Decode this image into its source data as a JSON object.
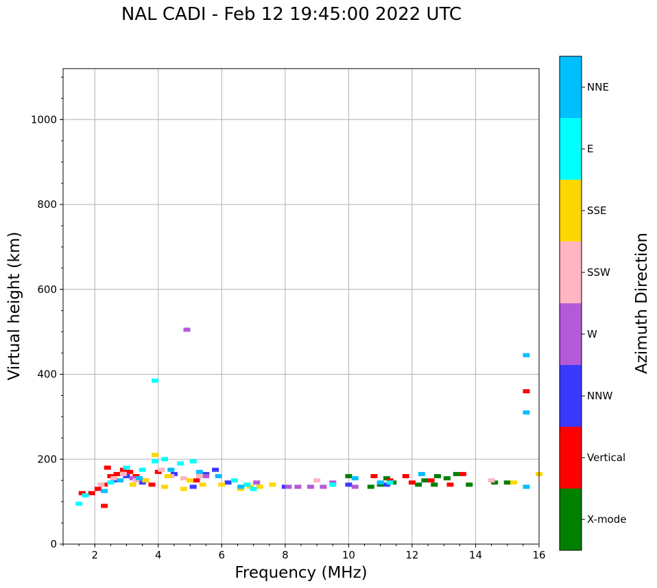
{
  "chart_data": {
    "type": "scatter",
    "title": "NAL CADI - Feb 12 19:45:00 2022 UTC",
    "xlabel": "Frequency (MHz)",
    "ylabel": "Virtual height (km)",
    "xlim": [
      1,
      16
    ],
    "ylim": [
      0,
      1120
    ],
    "xticks": [
      "2",
      "4",
      "6",
      "8",
      "10",
      "12",
      "14",
      "16"
    ],
    "yticks": [
      "0",
      "200",
      "400",
      "600",
      "800",
      "1000"
    ],
    "grid": true,
    "colorbar": {
      "label": "Azimuth Direction",
      "categories": [
        {
          "name": "X-mode",
          "color": "#008000"
        },
        {
          "name": "Vertical",
          "color": "#ff0000"
        },
        {
          "name": "NNW",
          "color": "#3a3aff"
        },
        {
          "name": "W",
          "color": "#b45ad8"
        },
        {
          "name": "SSW",
          "color": "#ffb6c1"
        },
        {
          "name": "SSE",
          "color": "#ffd700"
        },
        {
          "name": "E",
          "color": "#00ffff"
        },
        {
          "name": "NNE",
          "color": "#00bfff"
        }
      ]
    },
    "series": [
      {
        "name": "X-mode",
        "points": [
          [
            10.7,
            135
          ],
          [
            11.0,
            140
          ],
          [
            11.4,
            145
          ],
          [
            12.2,
            140
          ],
          [
            12.4,
            150
          ],
          [
            12.7,
            140
          ],
          [
            12.8,
            160
          ],
          [
            13.1,
            155
          ],
          [
            13.4,
            165
          ],
          [
            13.8,
            140
          ],
          [
            14.6,
            145
          ],
          [
            15.0,
            145
          ],
          [
            10.0,
            160
          ],
          [
            11.2,
            155
          ]
        ]
      },
      {
        "name": "Vertical",
        "points": [
          [
            1.6,
            120
          ],
          [
            1.9,
            120
          ],
          [
            2.1,
            130
          ],
          [
            2.3,
            140
          ],
          [
            2.5,
            160
          ],
          [
            2.7,
            165
          ],
          [
            2.9,
            175
          ],
          [
            3.1,
            170
          ],
          [
            3.3,
            160
          ],
          [
            3.6,
            150
          ],
          [
            3.8,
            140
          ],
          [
            4.0,
            170
          ],
          [
            2.3,
            90
          ],
          [
            2.4,
            180
          ],
          [
            10.8,
            160
          ],
          [
            11.3,
            150
          ],
          [
            11.8,
            160
          ],
          [
            12.0,
            145
          ],
          [
            12.6,
            150
          ],
          [
            13.2,
            140
          ],
          [
            13.6,
            165
          ],
          [
            15.6,
            360
          ],
          [
            5.2,
            150
          ]
        ]
      },
      {
        "name": "NNW",
        "points": [
          [
            2.6,
            150
          ],
          [
            3.0,
            160
          ],
          [
            3.5,
            145
          ],
          [
            4.5,
            165
          ],
          [
            5.5,
            165
          ],
          [
            5.8,
            175
          ],
          [
            6.2,
            145
          ],
          [
            8.0,
            135
          ],
          [
            10.0,
            140
          ],
          [
            11.2,
            140
          ],
          [
            5.1,
            135
          ]
        ]
      },
      {
        "name": "W",
        "points": [
          [
            4.9,
            505
          ],
          [
            5.5,
            160
          ],
          [
            7.1,
            145
          ],
          [
            8.1,
            135
          ],
          [
            8.4,
            135
          ],
          [
            8.8,
            135
          ],
          [
            9.2,
            135
          ],
          [
            9.5,
            145
          ],
          [
            10.2,
            135
          ],
          [
            3.2,
            155
          ]
        ]
      },
      {
        "name": "SSW",
        "points": [
          [
            2.2,
            140
          ],
          [
            2.6,
            155
          ],
          [
            3.3,
            150
          ],
          [
            4.1,
            175
          ],
          [
            4.4,
            160
          ],
          [
            4.8,
            155
          ],
          [
            5.3,
            160
          ],
          [
            9.0,
            150
          ],
          [
            12.3,
            165
          ],
          [
            14.5,
            150
          ],
          [
            2.9,
            165
          ]
        ]
      },
      {
        "name": "SSE",
        "points": [
          [
            3.2,
            140
          ],
          [
            3.6,
            150
          ],
          [
            3.9,
            210
          ],
          [
            4.2,
            135
          ],
          [
            4.3,
            160
          ],
          [
            4.8,
            130
          ],
          [
            5.0,
            150
          ],
          [
            5.4,
            140
          ],
          [
            6.0,
            140
          ],
          [
            6.6,
            130
          ],
          [
            6.9,
            135
          ],
          [
            7.2,
            135
          ],
          [
            7.6,
            140
          ],
          [
            15.2,
            145
          ],
          [
            16.0,
            165
          ]
        ]
      },
      {
        "name": "E",
        "points": [
          [
            1.5,
            95
          ],
          [
            1.7,
            115
          ],
          [
            2.5,
            145
          ],
          [
            3.0,
            180
          ],
          [
            3.5,
            175
          ],
          [
            3.9,
            385
          ],
          [
            3.9,
            195
          ],
          [
            4.2,
            200
          ],
          [
            4.7,
            190
          ],
          [
            5.1,
            195
          ],
          [
            6.4,
            150
          ],
          [
            6.8,
            140
          ],
          [
            7.0,
            130
          ],
          [
            9.5,
            140
          ],
          [
            11.3,
            145
          ]
        ]
      },
      {
        "name": "NNE",
        "points": [
          [
            2.3,
            125
          ],
          [
            2.8,
            150
          ],
          [
            3.4,
            155
          ],
          [
            4.4,
            175
          ],
          [
            5.3,
            170
          ],
          [
            5.9,
            160
          ],
          [
            6.6,
            135
          ],
          [
            10.2,
            155
          ],
          [
            11.0,
            145
          ],
          [
            12.3,
            165
          ],
          [
            15.6,
            445
          ],
          [
            15.6,
            310
          ],
          [
            15.6,
            135
          ]
        ]
      }
    ]
  }
}
